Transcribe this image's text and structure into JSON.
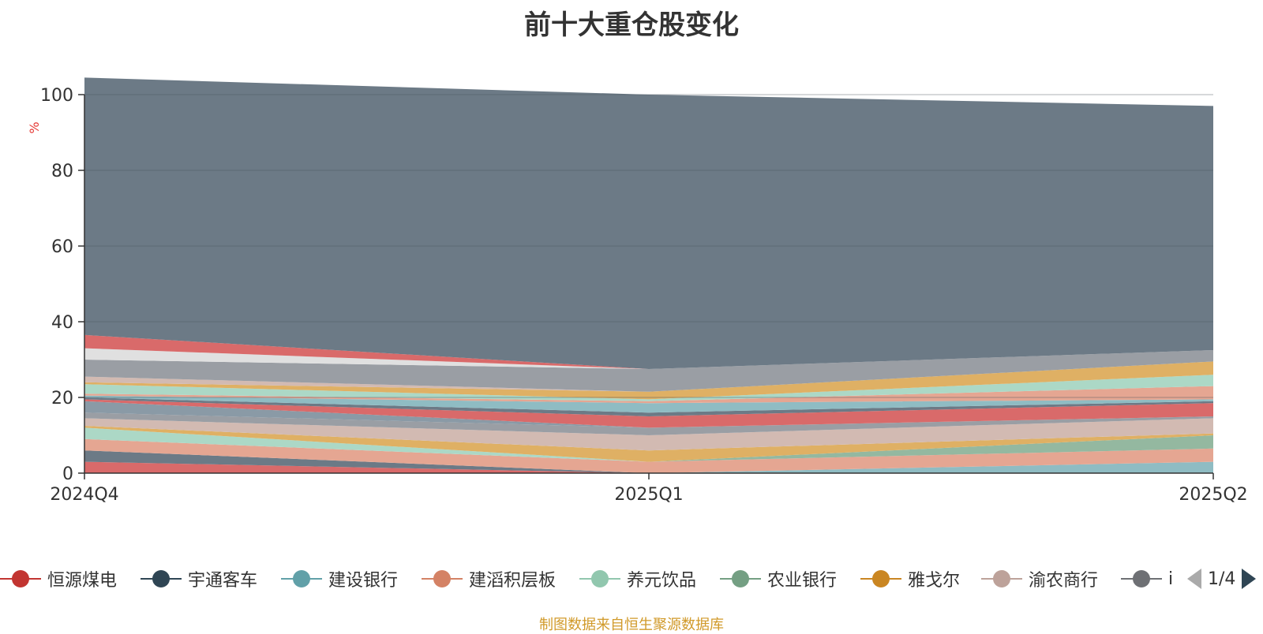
{
  "title": "前十大重仓股变化",
  "footer": "制图数据来自恒生聚源数据库",
  "pager": {
    "text": "1/4"
  },
  "chart_data": {
    "type": "area",
    "stacked": true,
    "categories": [
      "2024Q4",
      "2025Q1",
      "2025Q2"
    ],
    "ylabel": "%",
    "ylim": [
      0,
      100
    ],
    "yticks": [
      0,
      20,
      40,
      60,
      80,
      100
    ],
    "grid": true,
    "legend_position": "bottom",
    "series": [
      {
        "name": "恒源煤电",
        "color": "#d96a6a",
        "values": [
          3.0,
          0.0,
          0.0
        ]
      },
      {
        "name": "宇通客车",
        "color": "#6c7a86",
        "values": [
          3.0,
          0.0,
          0.0
        ]
      },
      {
        "name": "建设银行",
        "color": "#8fbcc3",
        "values": [
          0.0,
          0.0,
          3.0
        ]
      },
      {
        "name": "建滔积层板",
        "color": "#e5a692",
        "values": [
          3.0,
          3.0,
          3.5
        ]
      },
      {
        "name": "养元饮品",
        "color": "#acd8c6",
        "values": [
          3.0,
          0.0,
          0.0
        ]
      },
      {
        "name": "农业银行",
        "color": "#94b8a0",
        "values": [
          0.0,
          0.0,
          3.5
        ]
      },
      {
        "name": "雅戈尔",
        "color": "#dfb064",
        "values": [
          0.5,
          3.0,
          0.5
        ]
      },
      {
        "name": "渝农商行",
        "color": "#d2bab2",
        "values": [
          2.0,
          4.0,
          4.0
        ]
      },
      {
        "name": "",
        "color": "#9a9ea4",
        "values": [
          1.5,
          2.0,
          0.5
        ]
      },
      {
        "name": "",
        "color": "#8a9aa6",
        "values": [
          3.0,
          0.0,
          0.0
        ]
      },
      {
        "name": "",
        "color": "#d96a6a",
        "values": [
          0.5,
          3.0,
          3.5
        ]
      },
      {
        "name": "",
        "color": "#6c7a86",
        "values": [
          0.5,
          1.0,
          0.5
        ]
      },
      {
        "name": "",
        "color": "#8fbcc3",
        "values": [
          0.5,
          2.5,
          0.5
        ]
      },
      {
        "name": "",
        "color": "#e5a692",
        "values": [
          0.5,
          0.5,
          3.5
        ]
      },
      {
        "name": "",
        "color": "#acd8c6",
        "values": [
          2.5,
          0.5,
          3.0
        ]
      },
      {
        "name": "",
        "color": "#dfb064",
        "values": [
          0.5,
          2.0,
          3.5
        ]
      },
      {
        "name": "",
        "color": "#d2bab2",
        "values": [
          1.5,
          0.0,
          0.0
        ]
      },
      {
        "name": "",
        "color": "#9a9ea4",
        "values": [
          4.5,
          6.0,
          3.0
        ]
      },
      {
        "name": "",
        "color": "#e0e0e0",
        "values": [
          3.0,
          0.0,
          0.0
        ]
      },
      {
        "name": "",
        "color": "#d96a6a",
        "values": [
          3.5,
          0.0,
          0.0
        ]
      },
      {
        "name": "",
        "color": "#6c7a86",
        "values": [
          68.0,
          72.5,
          64.5
        ]
      }
    ]
  },
  "legend": {
    "items": [
      {
        "label": "恒源煤电",
        "color": "#c23531"
      },
      {
        "label": "宇通客车",
        "color": "#2f4554"
      },
      {
        "label": "建设银行",
        "color": "#61a0a8"
      },
      {
        "label": "建滔积层板",
        "color": "#d48265"
      },
      {
        "label": "养元饮品",
        "color": "#91c7ae"
      },
      {
        "label": "农业银行",
        "color": "#749f83"
      },
      {
        "label": "雅戈尔",
        "color": "#ca8622"
      },
      {
        "label": "渝农商行",
        "color": "#bda29a"
      },
      {
        "label": "i",
        "color": "#6e7074"
      }
    ]
  }
}
